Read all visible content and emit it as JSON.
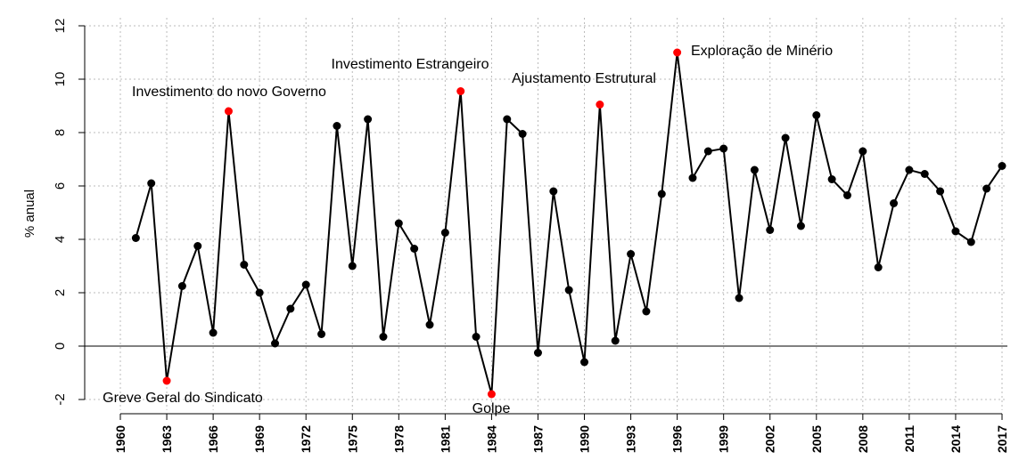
{
  "chart_data": {
    "type": "line",
    "y_label": "% anual",
    "x": [
      1961,
      1962,
      1963,
      1964,
      1965,
      1966,
      1967,
      1968,
      1969,
      1970,
      1971,
      1972,
      1973,
      1974,
      1975,
      1976,
      1977,
      1978,
      1979,
      1980,
      1981,
      1982,
      1983,
      1984,
      1985,
      1986,
      1987,
      1988,
      1989,
      1990,
      1991,
      1992,
      1993,
      1994,
      1995,
      1996,
      1997,
      1998,
      1999,
      2000,
      2001,
      2002,
      2003,
      2004,
      2005,
      2006,
      2007,
      2008,
      2009,
      2010,
      2011,
      2012,
      2013,
      2014,
      2015,
      2016,
      2017
    ],
    "series": [
      {
        "color": "#000000",
        "values": [
          4.05,
          6.1,
          -1.3,
          2.25,
          3.75,
          0.5,
          8.8,
          3.05,
          2.0,
          0.1,
          1.4,
          2.3,
          0.45,
          8.25,
          3.0,
          8.5,
          0.35,
          4.6,
          3.65,
          0.8,
          4.25,
          9.55,
          0.35,
          -1.8,
          8.5,
          7.95,
          -0.25,
          5.8,
          2.1,
          -0.6,
          9.05,
          0.2,
          3.45,
          1.3,
          5.7,
          11.0,
          6.3,
          7.3,
          7.4,
          1.8,
          6.6,
          4.35,
          7.8,
          4.5,
          8.65,
          6.25,
          5.65,
          7.3,
          2.95,
          5.35,
          6.6,
          6.45,
          5.8,
          4.3,
          3.9,
          5.9,
          6.75
        ],
        "marker_colors": [
          "#000000",
          "#000000",
          "#ff0000",
          "#000000",
          "#000000",
          "#000000",
          "#ff0000",
          "#000000",
          "#000000",
          "#000000",
          "#000000",
          "#000000",
          "#000000",
          "#000000",
          "#000000",
          "#000000",
          "#000000",
          "#000000",
          "#000000",
          "#000000",
          "#000000",
          "#ff0000",
          "#000000",
          "#ff0000",
          "#000000",
          "#000000",
          "#000000",
          "#000000",
          "#000000",
          "#000000",
          "#ff0000",
          "#000000",
          "#000000",
          "#000000",
          "#000000",
          "#ff0000",
          "#000000",
          "#000000",
          "#000000",
          "#000000",
          "#000000",
          "#000000",
          "#000000",
          "#000000",
          "#000000",
          "#000000",
          "#000000",
          "#000000",
          "#000000",
          "#000000",
          "#000000",
          "#000000",
          "#000000",
          "#000000",
          "#000000",
          "#000000",
          "#000000"
        ]
      }
    ],
    "annotations": [
      "Greve Geral do Sindicato",
      "Investimento do novo Governo",
      "Investimento Estrangeiro",
      "Golpe",
      "Ajustamento Estrutural",
      "Exploração de Minério"
    ],
    "xlim": [
      1960,
      2017
    ],
    "xticks": [
      1960,
      1963,
      1966,
      1969,
      1972,
      1975,
      1978,
      1981,
      1984,
      1987,
      1990,
      1993,
      1996,
      1999,
      2002,
      2005,
      2008,
      2011,
      2014,
      2017
    ],
    "ylim": [
      -2.4,
      12.3
    ],
    "yticks": [
      -2,
      0,
      2,
      4,
      6,
      8,
      10,
      12
    ],
    "grid": true
  }
}
